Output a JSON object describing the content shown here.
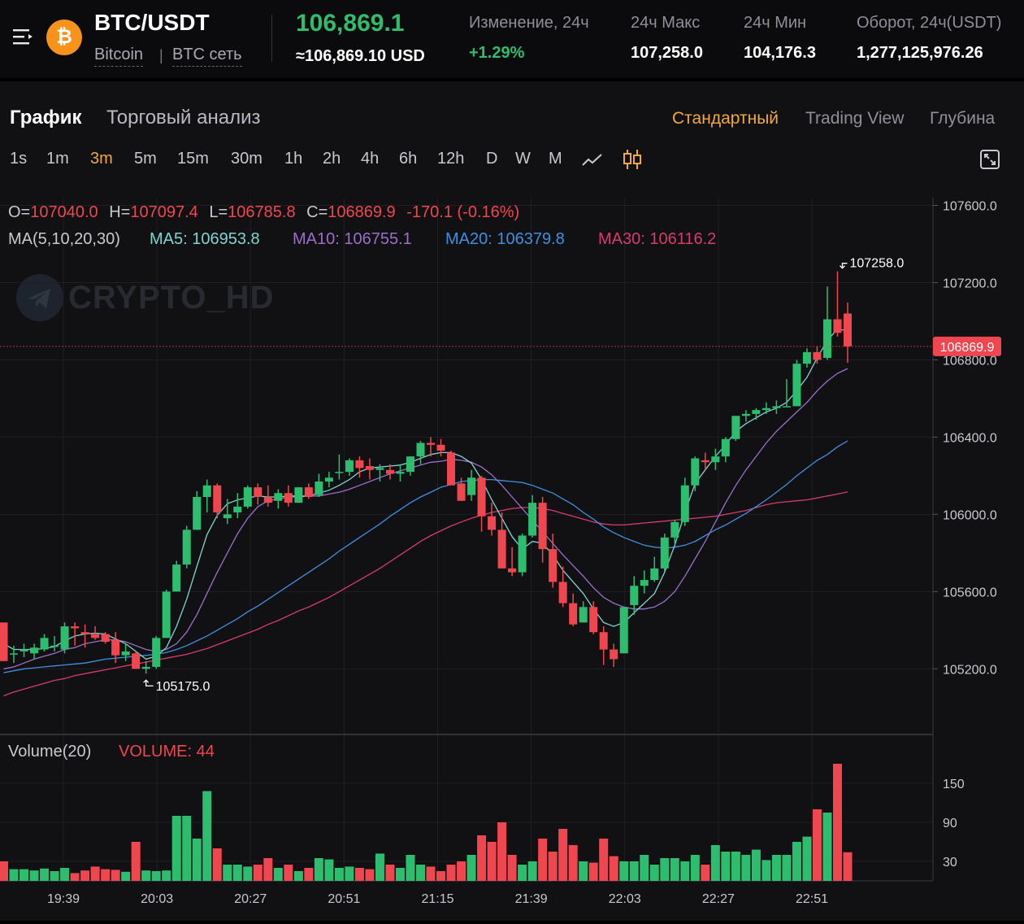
{
  "header": {
    "pair": "BTC/USDT",
    "coin_name": "Bitcoin",
    "separator": "|",
    "network": "BTC сеть",
    "coin_symbol": "₿",
    "price": "106,869.1",
    "price_usd": "≈106,869.10 USD",
    "stats": [
      {
        "label": "Изменение, 24ч",
        "value": "+1.29%",
        "color": "#2fbd6d"
      },
      {
        "label": "24ч Макс",
        "value": "107,258.0",
        "color": "#ffffff"
      },
      {
        "label": "24ч Мин",
        "value": "104,176.3",
        "color": "#ffffff"
      },
      {
        "label": "Оборот, 24ч(USDT)",
        "value": "1,277,125,976.26",
        "color": "#ffffff"
      }
    ],
    "menu_icon": "menu-icon"
  },
  "tabs": [
    {
      "label": "График",
      "active": true
    },
    {
      "label": "Торговый анализ",
      "active": false
    }
  ],
  "views": [
    {
      "label": "Стандартный",
      "active": true
    },
    {
      "label": "Trading View",
      "active": false
    },
    {
      "label": "Глубина",
      "active": false
    }
  ],
  "intervals": [
    {
      "label": "1s"
    },
    {
      "label": "1m"
    },
    {
      "label": "3m",
      "active": true
    },
    {
      "label": "5m"
    },
    {
      "label": "15m"
    },
    {
      "label": "30m"
    },
    {
      "label": "1h"
    },
    {
      "label": "2h"
    },
    {
      "label": "4h"
    },
    {
      "label": "6h"
    },
    {
      "label": "12h"
    },
    {
      "label": "D"
    },
    {
      "label": "W"
    },
    {
      "label": "M"
    }
  ],
  "ohlc": {
    "o_label": "O=",
    "o": "107040.0",
    "h_label": "H=",
    "h": "107097.4",
    "l_label": "L=",
    "l": "106785.8",
    "c_label": "C=",
    "c": "106869.9",
    "change": "-170.1 (-0.16%)"
  },
  "ma_legend": {
    "title": "MA(5,10,20,30)",
    "items": [
      {
        "label": "MA5: 106953.8",
        "color": "#7fd4cf"
      },
      {
        "label": "MA10: 106755.1",
        "color": "#9b6fc9"
      },
      {
        "label": "MA20: 106379.8",
        "color": "#3f8fe0"
      },
      {
        "label": "MA30: 106116.2",
        "color": "#d63b6b"
      }
    ]
  },
  "watermark": "CRYPTO_HD",
  "colors": {
    "up": "#2dbd6e",
    "down": "#f0464f",
    "accent": "#f0a93a",
    "grid": "#1f1f24"
  },
  "chart_data": {
    "type": "candlestick",
    "interval": "3m",
    "price_axis": {
      "ticks": [
        "107600.0",
        "107200.0",
        "106800.0",
        "106400.0",
        "106000.0",
        "105600.0",
        "105200.0"
      ],
      "ylim": [
        104860,
        107640
      ]
    },
    "time_axis": {
      "ticks": [
        "19:39",
        "20:03",
        "20:27",
        "20:51",
        "21:15",
        "21:39",
        "22:03",
        "22:27",
        "22:51"
      ]
    },
    "last_price_label": "106869.9",
    "high_marker": "107258.0",
    "low_marker": "105175.0",
    "volume_title": "Volume(20)",
    "volume_value": "VOLUME: 44",
    "volume_axis": {
      "ticks": [
        "150",
        "90",
        "30"
      ],
      "ylim": [
        0,
        200
      ]
    },
    "candles": [
      [
        105440,
        105440,
        105240,
        105240,
        30
      ],
      [
        105280,
        105320,
        105230,
        105280,
        18
      ],
      [
        105290,
        105330,
        105260,
        105300,
        18
      ],
      [
        105280,
        105330,
        105250,
        105310,
        16
      ],
      [
        105300,
        105380,
        105290,
        105360,
        19
      ],
      [
        105320,
        105370,
        105290,
        105320,
        15
      ],
      [
        105300,
        105440,
        105280,
        105420,
        20
      ],
      [
        105420,
        105440,
        105320,
        105410,
        12
      ],
      [
        105390,
        105430,
        105310,
        105380,
        16
      ],
      [
        105380,
        105420,
        105350,
        105360,
        22
      ],
      [
        105380,
        105390,
        105330,
        105340,
        18
      ],
      [
        105350,
        105390,
        105230,
        105270,
        17
      ],
      [
        105270,
        105330,
        105240,
        105290,
        14
      ],
      [
        105280,
        105290,
        105200,
        105200,
        60
      ],
      [
        105200,
        105240,
        105175,
        105210,
        16
      ],
      [
        105210,
        105370,
        105200,
        105360,
        15
      ],
      [
        105360,
        105610,
        105360,
        105600,
        16
      ],
      [
        105600,
        105760,
        105600,
        105740,
        100
      ],
      [
        105740,
        105940,
        105720,
        105920,
        100
      ],
      [
        105920,
        106120,
        105920,
        106090,
        65
      ],
      [
        106090,
        106180,
        106010,
        106150,
        138
      ],
      [
        106150,
        106160,
        105980,
        106010,
        50
      ],
      [
        105980,
        106080,
        105950,
        106000,
        25
      ],
      [
        106010,
        106110,
        105980,
        106040,
        25
      ],
      [
        106040,
        106150,
        106030,
        106140,
        22
      ],
      [
        106140,
        106160,
        106050,
        106090,
        25
      ],
      [
        106090,
        106150,
        106040,
        106060,
        35
      ],
      [
        106070,
        106130,
        106030,
        106110,
        20
      ],
      [
        106110,
        106150,
        106040,
        106060,
        25
      ],
      [
        106060,
        106140,
        106060,
        106140,
        15
      ],
      [
        106140,
        106160,
        106080,
        106090,
        20
      ],
      [
        106100,
        106210,
        106090,
        106170,
        35
      ],
      [
        106170,
        106220,
        106140,
        106190,
        33
      ],
      [
        106220,
        106310,
        106180,
        106220,
        20
      ],
      [
        106220,
        106290,
        106200,
        106280,
        22
      ],
      [
        106280,
        106300,
        106190,
        106240,
        20
      ],
      [
        106250,
        106290,
        106180,
        106230,
        18
      ],
      [
        106230,
        106260,
        106170,
        106240,
        42
      ],
      [
        106230,
        106260,
        106180,
        106210,
        25
      ],
      [
        106210,
        106260,
        106170,
        106220,
        20
      ],
      [
        106220,
        106300,
        106200,
        106300,
        40
      ],
      [
        106300,
        106380,
        106260,
        106370,
        25
      ],
      [
        106370,
        106400,
        106300,
        106360,
        22
      ],
      [
        106360,
        106390,
        106300,
        106330,
        15
      ],
      [
        106320,
        106330,
        106160,
        106150,
        25
      ],
      [
        106160,
        106190,
        106070,
        106070,
        30
      ],
      [
        106100,
        106230,
        106070,
        106190,
        40
      ],
      [
        106190,
        106200,
        105910,
        105990,
        70
      ],
      [
        105990,
        106060,
        105890,
        105920,
        60
      ],
      [
        105920,
        106010,
        105720,
        105720,
        90
      ],
      [
        105720,
        105830,
        105680,
        105700,
        40
      ],
      [
        105700,
        105900,
        105680,
        105890,
        25
      ],
      [
        105890,
        106100,
        105880,
        106060,
        30
      ],
      [
        106060,
        106090,
        105750,
        105820,
        65
      ],
      [
        105820,
        105900,
        105620,
        105650,
        45
      ],
      [
        105650,
        105730,
        105520,
        105540,
        80
      ],
      [
        105540,
        105590,
        105420,
        105430,
        55
      ],
      [
        105440,
        105550,
        105440,
        105520,
        30
      ],
      [
        105520,
        105550,
        105380,
        105390,
        28
      ],
      [
        105390,
        105420,
        105220,
        105300,
        65
      ],
      [
        105300,
        105330,
        105210,
        105250,
        38
      ],
      [
        105280,
        105520,
        105280,
        105520,
        30
      ],
      [
        105530,
        105680,
        105480,
        105630,
        30
      ],
      [
        105630,
        105710,
        105590,
        105660,
        40
      ],
      [
        105660,
        105780,
        105650,
        105720,
        25
      ],
      [
        105720,
        105900,
        105700,
        105880,
        35
      ],
      [
        105880,
        105970,
        105850,
        105960,
        35
      ],
      [
        105960,
        106190,
        105940,
        106150,
        30
      ],
      [
        106150,
        106300,
        106120,
        106290,
        40
      ],
      [
        106280,
        106320,
        106230,
        106270,
        25
      ],
      [
        106270,
        106340,
        106230,
        106300,
        55
      ],
      [
        106300,
        106400,
        106270,
        106390,
        45
      ],
      [
        106390,
        106510,
        106380,
        106510,
        45
      ],
      [
        106510,
        106540,
        106480,
        106520,
        40
      ],
      [
        106520,
        106550,
        106490,
        106540,
        48
      ],
      [
        106540,
        106580,
        106520,
        106550,
        32
      ],
      [
        106550,
        106590,
        106520,
        106560,
        40
      ],
      [
        106560,
        106700,
        106560,
        106560,
        40
      ],
      [
        106560,
        106800,
        106560,
        106780,
        60
      ],
      [
        106780,
        106860,
        106760,
        106840,
        68
      ],
      [
        106840,
        106870,
        106780,
        106800,
        110
      ],
      [
        106810,
        107180,
        106800,
        107010,
        105
      ],
      [
        107010,
        107258,
        106920,
        106940,
        180
      ],
      [
        107040,
        107097,
        106785,
        106870,
        44
      ]
    ],
    "ma5": [
      105330,
      105300,
      105300,
      105300,
      105305,
      105315,
      105345,
      105370,
      105380,
      105385,
      105380,
      105355,
      105330,
      105290,
      105250,
      105265,
      105310,
      105420,
      105560,
      105730,
      105895,
      105995,
      106055,
      106075,
      106085,
      106095,
      106090,
      106090,
      106095,
      106095,
      106095,
      106110,
      106125,
      106150,
      106180,
      106220,
      106240,
      106245,
      106250,
      106255,
      106270,
      106290,
      106310,
      106320,
      106320,
      106300,
      106265,
      106180,
      106075,
      105980,
      105885,
      105820,
      105860,
      105850,
      105790,
      105710,
      105650,
      105590,
      105510,
      105440,
      105420,
      105440,
      105490,
      105540,
      105590,
      105700,
      105840,
      106010,
      106160,
      106230,
      106300,
      106360,
      106430,
      106470,
      106500,
      106530,
      106550,
      106580,
      106640,
      106710,
      106810,
      106900,
      106960,
      106950
    ],
    "ma10": [
      105200,
      105210,
      105230,
      105250,
      105265,
      105280,
      105300,
      105310,
      105330,
      105340,
      105350,
      105350,
      105340,
      105320,
      105300,
      105290,
      105300,
      105330,
      105390,
      105480,
      105590,
      105700,
      105800,
      105900,
      105980,
      106040,
      106070,
      106080,
      106090,
      106090,
      106095,
      106095,
      106105,
      106115,
      106130,
      106150,
      106170,
      106190,
      106210,
      106225,
      106240,
      106255,
      106270,
      106275,
      106285,
      106280,
      106270,
      106245,
      106205,
      106150,
      106090,
      106030,
      105970,
      105910,
      105850,
      105790,
      105735,
      105680,
      105620,
      105570,
      105540,
      105520,
      105510,
      105510,
      105520,
      105550,
      105600,
      105680,
      105770,
      105860,
      105960,
      106060,
      106150,
      106230,
      106300,
      106370,
      106430,
      106480,
      106530,
      106580,
      106640,
      106690,
      106730,
      106755
    ],
    "ma20": [
      105180,
      105190,
      105200,
      105205,
      105210,
      105215,
      105220,
      105225,
      105230,
      105240,
      105250,
      105255,
      105260,
      105265,
      105270,
      105275,
      105285,
      105300,
      105320,
      105345,
      105370,
      105400,
      105430,
      105460,
      105495,
      105525,
      105560,
      105595,
      105630,
      105665,
      105700,
      105735,
      105770,
      105810,
      105845,
      105880,
      105915,
      105950,
      105990,
      106025,
      106060,
      106090,
      106115,
      106140,
      106155,
      106170,
      106175,
      106180,
      106180,
      106175,
      106170,
      106165,
      106150,
      106130,
      106110,
      106080,
      106050,
      106010,
      105975,
      105935,
      105905,
      105880,
      105860,
      105840,
      105830,
      105825,
      105830,
      105840,
      105860,
      105890,
      105920,
      105945,
      105975,
      106005,
      106040,
      106075,
      106115,
      106155,
      106200,
      106240,
      106280,
      106310,
      106350,
      106380
    ],
    "ma30": [
      105060,
      105080,
      105095,
      105110,
      105125,
      105140,
      105150,
      105165,
      105175,
      105185,
      105195,
      105205,
      105215,
      105225,
      105235,
      105245,
      105255,
      105265,
      105275,
      105290,
      105305,
      105325,
      105345,
      105365,
      105385,
      105405,
      105430,
      105450,
      105475,
      105500,
      105520,
      105545,
      105570,
      105600,
      105630,
      105660,
      105690,
      105720,
      105755,
      105790,
      105825,
      105860,
      105890,
      105915,
      105940,
      105960,
      105980,
      105995,
      106010,
      106020,
      106030,
      106035,
      106035,
      106030,
      106020,
      106005,
      105990,
      105975,
      105960,
      105950,
      105945,
      105945,
      105950,
      105955,
      105960,
      105965,
      105970,
      105975,
      105980,
      105985,
      105990,
      106000,
      106010,
      106020,
      106035,
      106050,
      106060,
      106065,
      106070,
      106075,
      106085,
      106095,
      106105,
      106116
    ]
  }
}
